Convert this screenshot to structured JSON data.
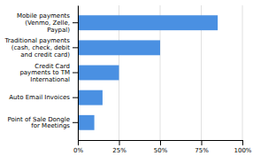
{
  "chart_data": {
    "type": "bar",
    "orientation": "horizontal",
    "categories": [
      "Point of Sale Dongle\nfor Meetings",
      "Auto Email Invoices",
      "Credit Card\npayments to TM\nInternational",
      "Traditional payments\n(cash, check, debit\nand credit card)",
      "Mobile payments\n(Venmo, Zelle,\nPaypal)"
    ],
    "values": [
      10,
      15,
      25,
      50,
      85
    ],
    "color": "#4a90e2",
    "xlim": [
      0,
      100
    ],
    "xticks": [
      {
        "value": 0,
        "label": "0%"
      },
      {
        "value": 25,
        "label": "25%"
      },
      {
        "value": 50,
        "label": "50%"
      },
      {
        "value": 75,
        "label": "75%"
      },
      {
        "value": 100,
        "label": "100%"
      }
    ],
    "grid": true
  }
}
